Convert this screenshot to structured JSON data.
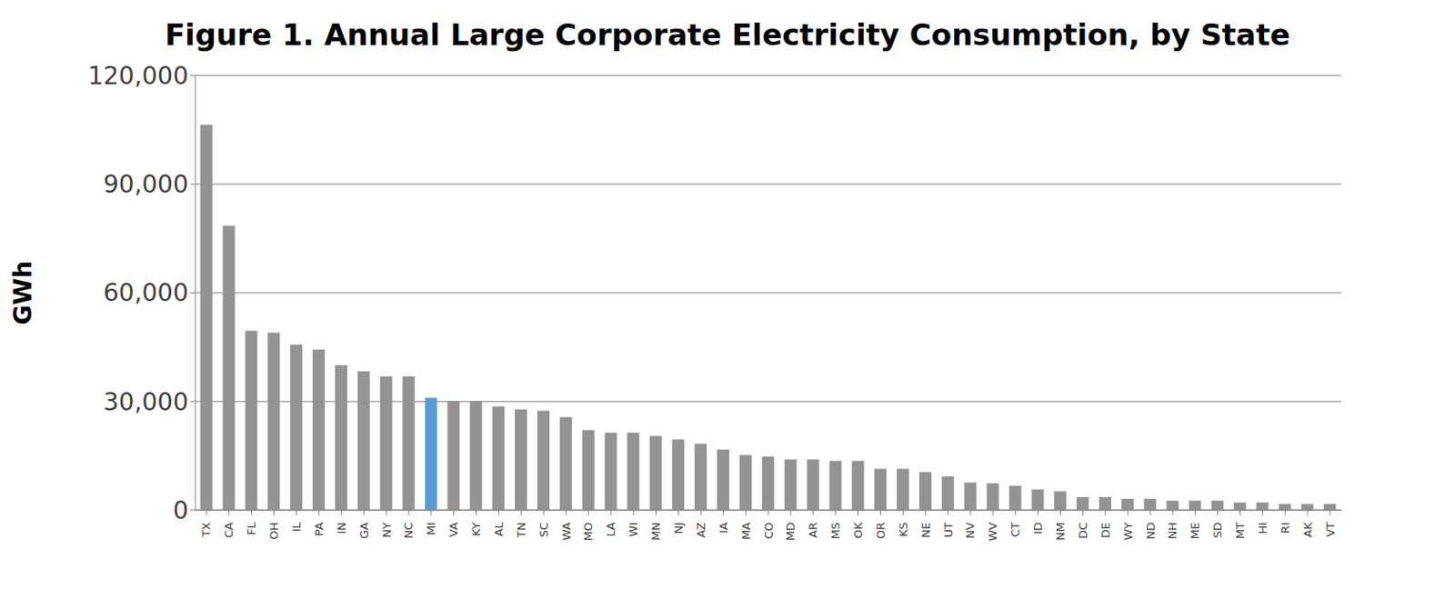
{
  "chart_data": {
    "type": "bar",
    "title": "Figure 1. Annual Large Corporate Electricity Consumption, by State",
    "y_label": "GWh",
    "categories": [
      "TX",
      "CA",
      "FL",
      "OH",
      "IL",
      "PA",
      "IN",
      "GA",
      "NY",
      "NC",
      "MI",
      "VA",
      "KY",
      "AL",
      "TN",
      "SC",
      "WA",
      "MO",
      "LA",
      "WI",
      "MN",
      "NJ",
      "AZ",
      "IA",
      "MA",
      "CO",
      "MD",
      "AR",
      "MS",
      "OK",
      "OR",
      "KS",
      "NE",
      "UT",
      "NV",
      "WV",
      "CT",
      "ID",
      "NM",
      "DC",
      "DE",
      "WY",
      "ND",
      "NH",
      "ME",
      "SD",
      "MT",
      "HI",
      "RI",
      "AK",
      "VT"
    ],
    "values": [
      106400,
      78500,
      49500,
      49000,
      45700,
      44300,
      40000,
      38300,
      36900,
      36900,
      31000,
      30200,
      30200,
      28600,
      27800,
      27400,
      25700,
      22100,
      21400,
      21400,
      20500,
      19500,
      18300,
      16700,
      15200,
      14800,
      14000,
      14000,
      13600,
      13600,
      11400,
      11400,
      10500,
      9300,
      7600,
      7400,
      6700,
      5700,
      5200,
      3600,
      3600,
      3100,
      3100,
      2600,
      2600,
      2600,
      2100,
      2100,
      1700,
      1700,
      1700
    ],
    "colors": [
      "#939393",
      "#939393",
      "#939393",
      "#939393",
      "#939393",
      "#939393",
      "#939393",
      "#939393",
      "#939393",
      "#939393",
      "#5b9bd5",
      "#939393",
      "#939393",
      "#939393",
      "#939393",
      "#939393",
      "#939393",
      "#939393",
      "#939393",
      "#939393",
      "#939393",
      "#939393",
      "#939393",
      "#939393",
      "#939393",
      "#939393",
      "#939393",
      "#939393",
      "#939393",
      "#939393",
      "#939393",
      "#939393",
      "#939393",
      "#939393",
      "#939393",
      "#939393",
      "#939393",
      "#939393",
      "#939393",
      "#939393",
      "#939393",
      "#939393",
      "#939393",
      "#939393",
      "#939393",
      "#939393",
      "#939393",
      "#939393",
      "#939393",
      "#939393",
      "#939393"
    ],
    "ylim": [
      0,
      120000
    ],
    "yticks": [
      0,
      {
        "value": 30000,
        "label": "30,000"
      },
      {
        "value": 60000,
        "label": "60,000"
      },
      {
        "value": 90000,
        "label": "90,000"
      },
      {
        "value": 120000,
        "label": "120,000"
      }
    ],
    "grid": true
  }
}
